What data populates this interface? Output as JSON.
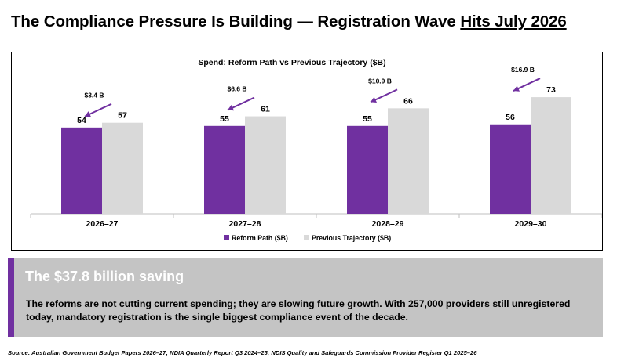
{
  "header": {
    "title_main": "The Compliance Pressure Is Building — Registration Wave ",
    "title_underlined": "Hits July 2026"
  },
  "chart_data": {
    "type": "bar",
    "title": "Spend: Reform Path vs Previous Trajectory ($B)",
    "categories": [
      "2026–27",
      "2027–28",
      "2028–29",
      "2029–30"
    ],
    "series": [
      {
        "name": "Reform Path ($B)",
        "values": [
          54,
          55,
          55,
          56
        ],
        "color": "#7030a0"
      },
      {
        "name": "Previous Trajectory ($B)",
        "values": [
          57,
          61,
          66,
          73
        ],
        "color": "#d9d9d9"
      }
    ],
    "annotations": [
      "$3.4 B",
      "$6.6 B",
      "$10.9 B",
      "$16.9 B"
    ],
    "annotation_color": "#7030a0",
    "ylim": [
      0,
      100
    ],
    "grid": false,
    "legend": "bottom"
  },
  "callout": {
    "heading": "The $37.8 billion saving",
    "body": "The reforms are not cutting current spending; they are slowing future growth. With 257,000 providers still unregistered today, mandatory registration is the single biggest compliance event of the decade."
  },
  "footer": {
    "source": "Source: Australian Government Budget Papers 2026–27; NDIA Quarterly Report Q3 2024–25; NDIS Quality and Safeguards Commission Provider Register Q1 2025–26"
  }
}
